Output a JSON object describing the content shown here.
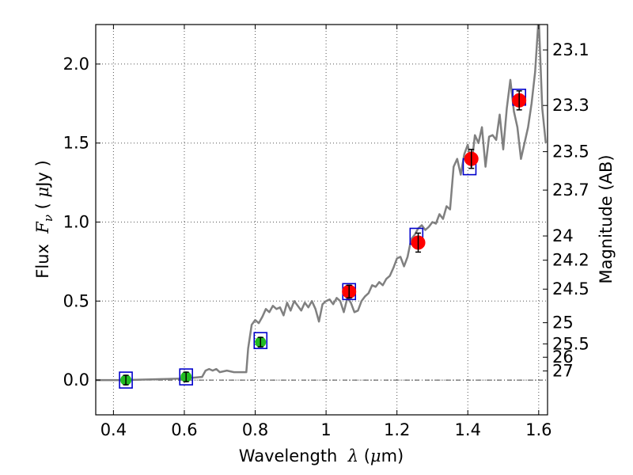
{
  "chart_data": {
    "type": "scatter",
    "xlabel_parts": {
      "prefix": "Wavelength  ",
      "symbol": "λ",
      "unit_open": " (",
      "unit_mu": "μ",
      "unit_close": "m)"
    },
    "ylabel_parts": {
      "prefix": "Flux  ",
      "symbol": "F",
      "subscript": "ν",
      "unit_open": " ( ",
      "unit_mu": "μ",
      "unit_close": "Jy )"
    },
    "y2label": "Magnitude (AB)",
    "xlim": [
      0.35,
      1.625
    ],
    "ylim": [
      -0.22,
      2.25
    ],
    "x_ticks": [
      0.4,
      0.6,
      0.8,
      1.0,
      1.2,
      1.4,
      1.6
    ],
    "x_tick_labels": [
      "0.4",
      "0.6",
      "0.8",
      "1",
      "1.2",
      "1.4",
      "1.6"
    ],
    "y_ticks": [
      0.0,
      0.5,
      1.0,
      1.5,
      2.0
    ],
    "y_tick_labels": [
      "0.0",
      "0.5",
      "1.0",
      "1.5",
      "2.0"
    ],
    "y2_ticks": [
      23.1,
      23.3,
      23.5,
      23.7,
      24,
      24.2,
      24.5,
      25,
      25.5,
      26,
      27
    ],
    "y2_tick_labels": [
      "23.1",
      "23.3",
      "23.5",
      "23.7",
      "24",
      "24.2",
      "24.5",
      "25",
      "25.5",
      "26",
      "27"
    ],
    "grid": true,
    "colors": {
      "model": "#808080",
      "model_boxes": "#0000cc",
      "upper_limits": "#22bb22",
      "detections": "#ff0000",
      "errorbars": "#000000",
      "zero_line": "#444444",
      "grid": "#555555"
    },
    "series": [
      {
        "kind": "line",
        "x": [
          0.35,
          0.43,
          0.6,
          0.65,
          0.66,
          0.67,
          0.68,
          0.69,
          0.7,
          0.72,
          0.74,
          0.76,
          0.775,
          0.78,
          0.79,
          0.8,
          0.81,
          0.82,
          0.83,
          0.84,
          0.85,
          0.86,
          0.87,
          0.88,
          0.89,
          0.9,
          0.91,
          0.92,
          0.93,
          0.94,
          0.95,
          0.96,
          0.97,
          0.98,
          0.99,
          1.0,
          1.01,
          1.02,
          1.03,
          1.04,
          1.05,
          1.06,
          1.07,
          1.08,
          1.09,
          1.1,
          1.11,
          1.12,
          1.13,
          1.14,
          1.15,
          1.16,
          1.17,
          1.18,
          1.19,
          1.2,
          1.21,
          1.22,
          1.23,
          1.24,
          1.25,
          1.26,
          1.27,
          1.28,
          1.29,
          1.3,
          1.31,
          1.32,
          1.33,
          1.34,
          1.35,
          1.36,
          1.37,
          1.38,
          1.39,
          1.4,
          1.41,
          1.42,
          1.43,
          1.44,
          1.45,
          1.46,
          1.47,
          1.48,
          1.49,
          1.5,
          1.51,
          1.52,
          1.53,
          1.54,
          1.55,
          1.56,
          1.57,
          1.58,
          1.59,
          1.6,
          1.61,
          1.62
        ],
        "y": [
          0.0,
          0.0,
          0.01,
          0.02,
          0.06,
          0.07,
          0.06,
          0.07,
          0.05,
          0.06,
          0.05,
          0.05,
          0.05,
          0.2,
          0.35,
          0.38,
          0.36,
          0.4,
          0.45,
          0.43,
          0.47,
          0.45,
          0.46,
          0.41,
          0.49,
          0.44,
          0.5,
          0.47,
          0.44,
          0.49,
          0.46,
          0.5,
          0.45,
          0.37,
          0.48,
          0.5,
          0.51,
          0.48,
          0.52,
          0.5,
          0.43,
          0.52,
          0.49,
          0.43,
          0.44,
          0.5,
          0.53,
          0.55,
          0.6,
          0.59,
          0.62,
          0.6,
          0.64,
          0.66,
          0.71,
          0.77,
          0.78,
          0.72,
          0.78,
          0.89,
          0.92,
          0.96,
          0.98,
          0.95,
          0.97,
          1.0,
          0.99,
          1.05,
          1.02,
          1.1,
          1.08,
          1.35,
          1.4,
          1.3,
          1.43,
          1.49,
          1.35,
          1.55,
          1.5,
          1.6,
          1.35,
          1.54,
          1.55,
          1.52,
          1.68,
          1.46,
          1.72,
          1.9,
          1.7,
          1.6,
          1.4,
          1.5,
          1.6,
          1.75,
          1.95,
          2.3,
          1.72,
          1.5
        ]
      },
      {
        "kind": "boxes",
        "x": [
          0.435,
          0.605,
          0.815,
          1.065,
          1.255,
          1.405,
          1.545
        ],
        "y": [
          0.0,
          0.02,
          0.25,
          0.56,
          0.91,
          1.35,
          1.79
        ]
      },
      {
        "kind": "points-with-errors",
        "role": "green",
        "x": [
          0.435,
          0.605,
          0.815
        ],
        "y": [
          0.0,
          0.02,
          0.24
        ],
        "yerr": [
          0.03,
          0.03,
          0.03
        ]
      },
      {
        "kind": "points-with-errors",
        "role": "red",
        "x": [
          1.065,
          1.26,
          1.41,
          1.545
        ],
        "y": [
          0.56,
          0.87,
          1.4,
          1.77
        ],
        "yerr": [
          0.04,
          0.06,
          0.06,
          0.06
        ]
      }
    ]
  }
}
